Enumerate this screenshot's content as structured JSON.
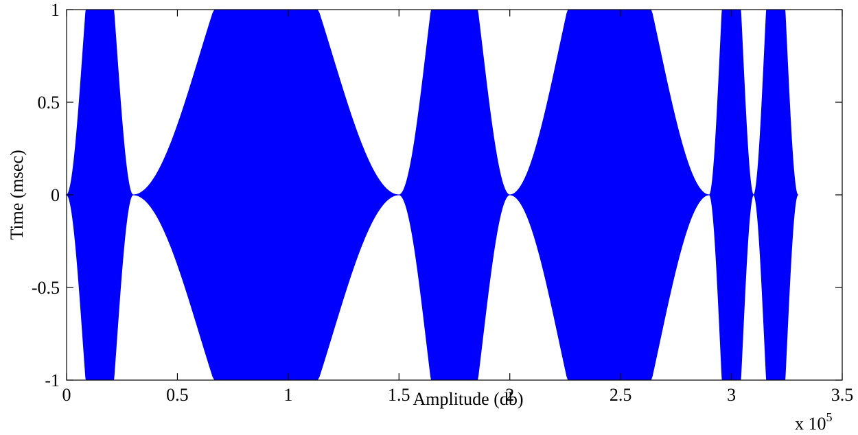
{
  "chart_data": {
    "type": "area",
    "title": "",
    "xlabel": "Amplitude (db)",
    "ylabel": "Time (msec)",
    "x_exponent_label": "x 10",
    "x_exponent_power": "5",
    "xlim": [
      0,
      3.5
    ],
    "ylim": [
      -1,
      1
    ],
    "x_ticks": [
      {
        "value": 0,
        "label": "0"
      },
      {
        "value": 0.5,
        "label": "0.5"
      },
      {
        "value": 1,
        "label": "1"
      },
      {
        "value": 1.5,
        "label": "1.5"
      },
      {
        "value": 2,
        "label": "2"
      },
      {
        "value": 2.5,
        "label": "2.5"
      },
      {
        "value": 3,
        "label": "3"
      },
      {
        "value": 3.5,
        "label": "3.5"
      }
    ],
    "y_ticks": [
      {
        "value": -1,
        "label": "-1"
      },
      {
        "value": -0.5,
        "label": "-0.5"
      },
      {
        "value": 0,
        "label": "0"
      },
      {
        "value": 0.5,
        "label": "0.5"
      },
      {
        "value": 1,
        "label": "1"
      }
    ],
    "grid": false,
    "legend": "none",
    "color": "#0000ff",
    "envelope_segments": [
      {
        "start": 0,
        "end": 0.3,
        "peak": 1.6
      },
      {
        "start": 0.3,
        "end": 1.5,
        "peak": 1.5
      },
      {
        "start": 1.5,
        "end": 2.0,
        "peak": 1.6
      },
      {
        "start": 2.0,
        "end": 2.9,
        "peak": 1.6
      },
      {
        "start": 2.9,
        "end": 3.1,
        "peak": 1.6
      },
      {
        "start": 3.1,
        "end": 3.3,
        "peak": 1.6
      }
    ]
  }
}
